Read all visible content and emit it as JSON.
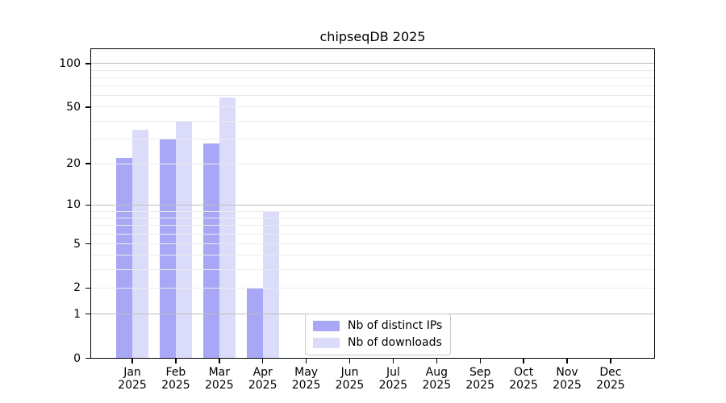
{
  "title": "chipseqDB 2025",
  "chart_data": {
    "type": "bar",
    "title": "chipseqDB 2025",
    "categories": [
      "Jan",
      "Feb",
      "Mar",
      "Apr",
      "May",
      "Jun",
      "Jul",
      "Aug",
      "Sep",
      "Oct",
      "Nov",
      "Dec"
    ],
    "category_year": "2025",
    "series": [
      {
        "name": "Nb of distinct IPs",
        "color": "#a7a7f6",
        "values": [
          22,
          30,
          28,
          2,
          0,
          0,
          0,
          0,
          0,
          0,
          0,
          0
        ]
      },
      {
        "name": "Nb of downloads",
        "color": "#dbdbfa",
        "values": [
          35,
          40,
          58,
          9,
          0,
          0,
          0,
          0,
          0,
          0,
          0,
          0
        ]
      }
    ],
    "xlabel": "",
    "ylabel": "",
    "yscale": "log1p",
    "ylim": [
      0,
      127
    ],
    "yticks": [
      0,
      1,
      2,
      5,
      10,
      20,
      50,
      100
    ],
    "grid": true,
    "major_grid_values": [
      1,
      10,
      100
    ],
    "minor_grid_values": [
      2,
      3,
      4,
      5,
      6,
      7,
      8,
      9,
      20,
      30,
      40,
      50,
      60,
      70,
      80,
      90
    ],
    "legend_position": "lower center"
  },
  "legend": {
    "items": [
      {
        "label": "Nb of distinct IPs",
        "color": "#a7a7f6"
      },
      {
        "label": "Nb of downloads",
        "color": "#dbdbfa"
      }
    ]
  }
}
